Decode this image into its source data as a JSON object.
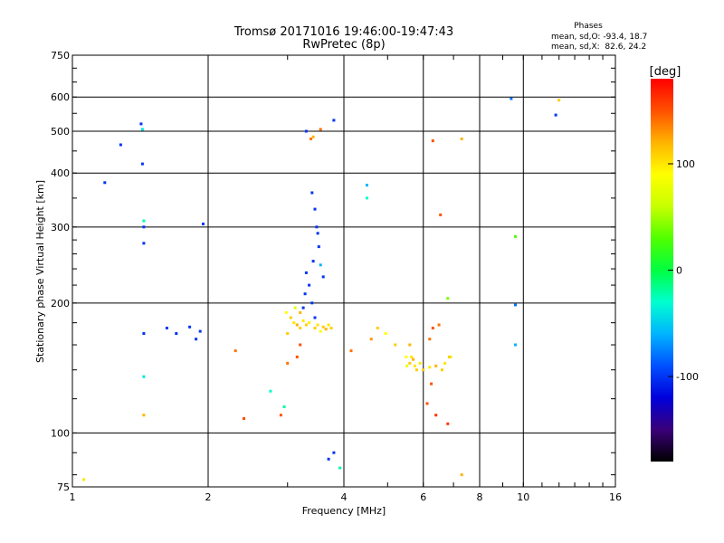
{
  "chart_data": {
    "type": "scatter",
    "title_line1": "Tromsø 20171016 19:46:00-19:47:43",
    "title_line2": "RwPretec (8p)",
    "stats": {
      "header": "Phases",
      "o_line": "mean, sd,O: -93.4, 18.7",
      "x_line": "mean, sd,X:  82.6, 24.2"
    },
    "xlabel": "Frequency [MHz]",
    "ylabel": "Stationary phase Virtual Height [km]",
    "x_scale": "log",
    "y_scale": "log",
    "xlim": [
      1,
      16
    ],
    "ylim": [
      75,
      750
    ],
    "x_ticks": [
      1,
      2,
      4,
      6,
      8,
      10,
      16
    ],
    "x_tick_labels": [
      "1",
      "2",
      "4",
      "6",
      "8",
      "10",
      "16"
    ],
    "x_grid": [
      2,
      4,
      6,
      8,
      10
    ],
    "y_ticks": [
      75,
      100,
      200,
      300,
      400,
      500,
      600,
      750
    ],
    "y_tick_labels": [
      "75",
      "100",
      "200",
      "300",
      "400",
      "500",
      "600",
      "750"
    ],
    "y_grid": [
      100,
      200,
      300,
      400,
      500,
      600
    ],
    "grid": true,
    "colorbar": {
      "label": "[deg]",
      "range": [
        -180,
        180
      ],
      "ticks": [
        100,
        0,
        -100
      ],
      "tick_labels": [
        "100",
        "0",
        "-100"
      ],
      "colors": [
        "#000000",
        "#3a0078",
        "#0000dc",
        "#0050ff",
        "#00b4ff",
        "#00ffd0",
        "#00ff40",
        "#50ff00",
        "#c8ff00",
        "#ffff00",
        "#ffb400",
        "#ff5000",
        "#ff0000"
      ]
    },
    "series": [
      {
        "values": [
          [
            1.06,
            78,
            100
          ],
          [
            1.18,
            380,
            -100
          ],
          [
            1.28,
            465,
            -100
          ],
          [
            1.42,
            520,
            -100
          ],
          [
            1.43,
            505,
            -40
          ],
          [
            1.43,
            420,
            -100
          ],
          [
            1.44,
            310,
            -20
          ],
          [
            1.44,
            300,
            -100
          ],
          [
            1.44,
            275,
            -100
          ],
          [
            1.44,
            170,
            -100
          ],
          [
            1.44,
            135,
            -40
          ],
          [
            1.44,
            110,
            120
          ],
          [
            1.95,
            305,
            -100
          ],
          [
            3.38,
            480,
            140
          ],
          [
            3.55,
            505,
            140
          ],
          [
            3.3,
            500,
            -100
          ],
          [
            3.8,
            530,
            -100
          ],
          [
            3.8,
            90,
            -100
          ],
          [
            3.7,
            87,
            -100
          ],
          [
            3.92,
            83,
            -20
          ],
          [
            4.5,
            375,
            -60
          ],
          [
            4.5,
            350,
            -30
          ],
          [
            6.3,
            475,
            150
          ],
          [
            6.55,
            320,
            150
          ],
          [
            7.3,
            480,
            120
          ],
          [
            7.3,
            80,
            120
          ],
          [
            9.4,
            595,
            -80
          ],
          [
            9.6,
            285,
            30
          ],
          [
            9.6,
            198,
            -80
          ],
          [
            9.6,
            160,
            -60
          ],
          [
            11.8,
            545,
            -100
          ],
          [
            12.0,
            590,
            110
          ],
          [
            6.8,
            205,
            40
          ],
          [
            6.9,
            150,
            70
          ],
          [
            6.8,
            105,
            160
          ],
          [
            6.4,
            110,
            160
          ],
          [
            2.4,
            108,
            150
          ],
          [
            2.9,
            110,
            150
          ],
          [
            2.3,
            155,
            140
          ],
          [
            1.62,
            175,
            -100
          ],
          [
            1.7,
            170,
            -100
          ],
          [
            1.82,
            176,
            -100
          ],
          [
            1.88,
            165,
            -100
          ],
          [
            1.92,
            172,
            -100
          ],
          [
            3.4,
            360,
            -100
          ],
          [
            3.45,
            330,
            -100
          ],
          [
            3.48,
            300,
            -100
          ],
          [
            3.5,
            290,
            -100
          ],
          [
            3.52,
            270,
            -100
          ],
          [
            3.42,
            250,
            -100
          ],
          [
            3.55,
            245,
            -60
          ],
          [
            3.6,
            230,
            -100
          ],
          [
            3.3,
            235,
            -100
          ],
          [
            3.35,
            220,
            -100
          ],
          [
            3.28,
            210,
            -100
          ],
          [
            3.4,
            200,
            -100
          ],
          [
            3.25,
            195,
            -100
          ],
          [
            3.45,
            185,
            -100
          ],
          [
            2.98,
            190,
            90
          ],
          [
            3.05,
            185,
            110
          ],
          [
            3.1,
            180,
            100
          ],
          [
            3.15,
            178,
            120
          ],
          [
            3.2,
            175,
            110
          ],
          [
            3.25,
            182,
            100
          ],
          [
            3.3,
            178,
            110
          ],
          [
            3.35,
            180,
            95
          ],
          [
            3.45,
            175,
            110
          ],
          [
            3.5,
            178,
            100
          ],
          [
            3.55,
            172,
            90
          ],
          [
            3.6,
            176,
            110
          ],
          [
            3.65,
            174,
            120
          ],
          [
            3.7,
            178,
            100
          ],
          [
            3.75,
            175,
            110
          ],
          [
            3.12,
            195,
            70
          ],
          [
            3.2,
            190,
            120
          ],
          [
            3.0,
            170,
            110
          ],
          [
            5.6,
            145,
            110
          ],
          [
            5.65,
            150,
            100
          ],
          [
            5.7,
            148,
            120
          ],
          [
            5.75,
            143,
            100
          ],
          [
            5.8,
            140,
            110
          ],
          [
            5.9,
            145,
            100
          ],
          [
            6.0,
            140,
            110
          ],
          [
            6.2,
            142,
            100
          ],
          [
            6.4,
            143,
            120
          ],
          [
            6.6,
            140,
            110
          ],
          [
            6.7,
            145,
            100
          ],
          [
            6.85,
            150,
            110
          ],
          [
            5.5,
            150,
            90
          ],
          [
            5.52,
            143,
            80
          ],
          [
            3.42,
            485,
            120
          ],
          [
            3.2,
            160,
            150
          ],
          [
            3.15,
            150,
            150
          ],
          [
            3.0,
            145,
            140
          ],
          [
            4.15,
            155,
            140
          ],
          [
            4.6,
            165,
            130
          ],
          [
            4.75,
            175,
            110
          ],
          [
            4.95,
            170,
            90
          ],
          [
            2.95,
            115,
            -20
          ],
          [
            2.75,
            125,
            -30
          ],
          [
            6.2,
            165,
            140
          ],
          [
            6.3,
            175,
            150
          ],
          [
            6.5,
            178,
            140
          ],
          [
            5.6,
            160,
            120
          ],
          [
            5.2,
            160,
            110
          ],
          [
            6.12,
            117,
            150
          ],
          [
            6.25,
            130,
            150
          ]
        ]
      }
    ]
  }
}
